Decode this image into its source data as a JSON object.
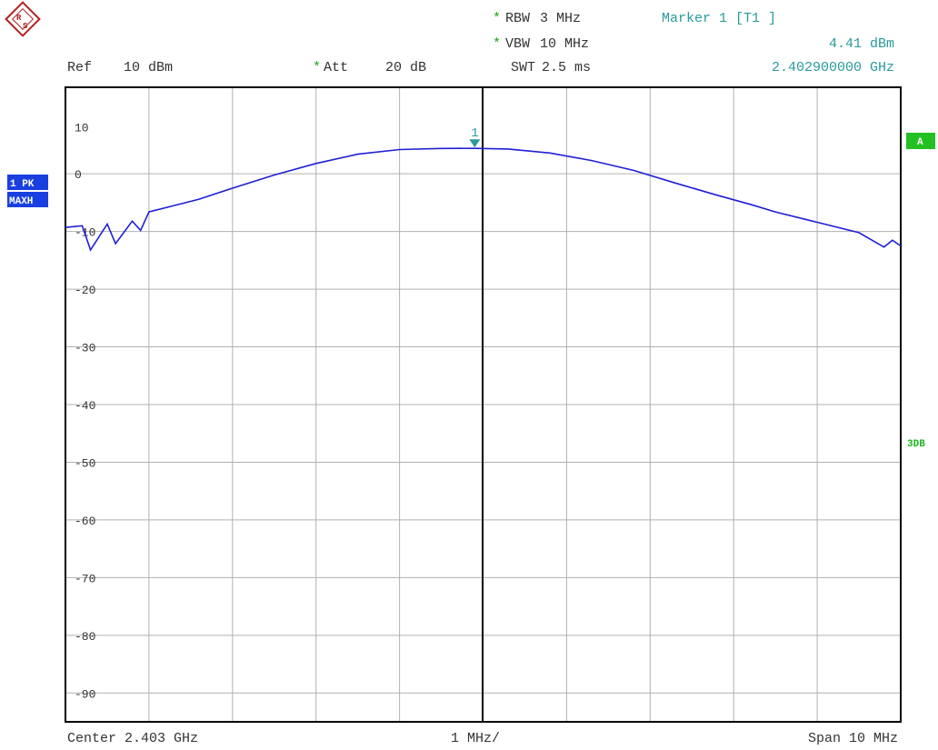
{
  "header": {
    "rbw": {
      "label": "RBW",
      "value": "3 MHz"
    },
    "vbw": {
      "label": "VBW",
      "value": "10 MHz"
    },
    "swt": {
      "label": "SWT",
      "value": "2.5 ms"
    },
    "ref": {
      "label": "Ref",
      "value": "10 dBm"
    },
    "att": {
      "label": "Att",
      "value": "20 dB"
    },
    "marker": {
      "title": "Marker 1 [T1 ]",
      "level": "4.41 dBm",
      "freq": "2.402900000 GHz"
    }
  },
  "footer": {
    "center": "Center 2.403 GHz",
    "per_div": "1 MHz/",
    "span": "Span 10 MHz"
  },
  "side_labels": {
    "trace": "1 PK",
    "mode": "MAXH",
    "trace_id": "A",
    "limit": "3DB"
  },
  "colors": {
    "trace": "#1f1fd6",
    "marker": "#2a9a9a",
    "grid": "#b0b0b0",
    "frame": "#000000",
    "badge_blue": "#1a3fe0",
    "badge_green": "#22c022"
  },
  "chart_data": {
    "type": "line",
    "xlabel": "",
    "ylabel": "",
    "x_unit": "MHz",
    "xlim": [
      2398.0,
      2408.0
    ],
    "ylim": [
      -95,
      15
    ],
    "y_ticks": [
      10,
      0,
      -10,
      -20,
      -30,
      -40,
      -50,
      -60,
      -70,
      -80,
      -90
    ],
    "y_tick_labels": [
      "10",
      "0",
      "-10",
      "-20",
      "-30",
      "-40",
      "-50",
      "-60",
      "-70",
      "-80",
      "-90"
    ],
    "grid": true,
    "center_line_x": 2403.0,
    "series": [
      {
        "x": [
          2398.0,
          2398.2,
          2398.3,
          2398.5,
          2398.6,
          2398.8,
          2398.9,
          2399.0,
          2399.3,
          2399.6,
          2400.0,
          2400.5,
          2401.0,
          2401.5,
          2402.0,
          2402.5,
          2402.9,
          2403.3,
          2403.8,
          2404.3,
          2404.8,
          2405.3,
          2405.8,
          2406.2,
          2406.5,
          2407.0,
          2407.5,
          2407.8,
          2407.9,
          2408.0
        ],
        "y": [
          -9.3,
          -9.0,
          -13.2,
          -8.7,
          -12.1,
          -8.2,
          -9.8,
          -6.6,
          -5.5,
          -4.4,
          -2.5,
          -0.2,
          1.8,
          3.4,
          4.2,
          4.4,
          4.41,
          4.3,
          3.6,
          2.3,
          0.6,
          -1.6,
          -3.7,
          -5.3,
          -6.6,
          -8.4,
          -10.2,
          -12.7,
          -11.5,
          -12.5
        ]
      }
    ],
    "markers": [
      {
        "label": "1",
        "x": 2402.9,
        "y": 4.41
      }
    ]
  }
}
